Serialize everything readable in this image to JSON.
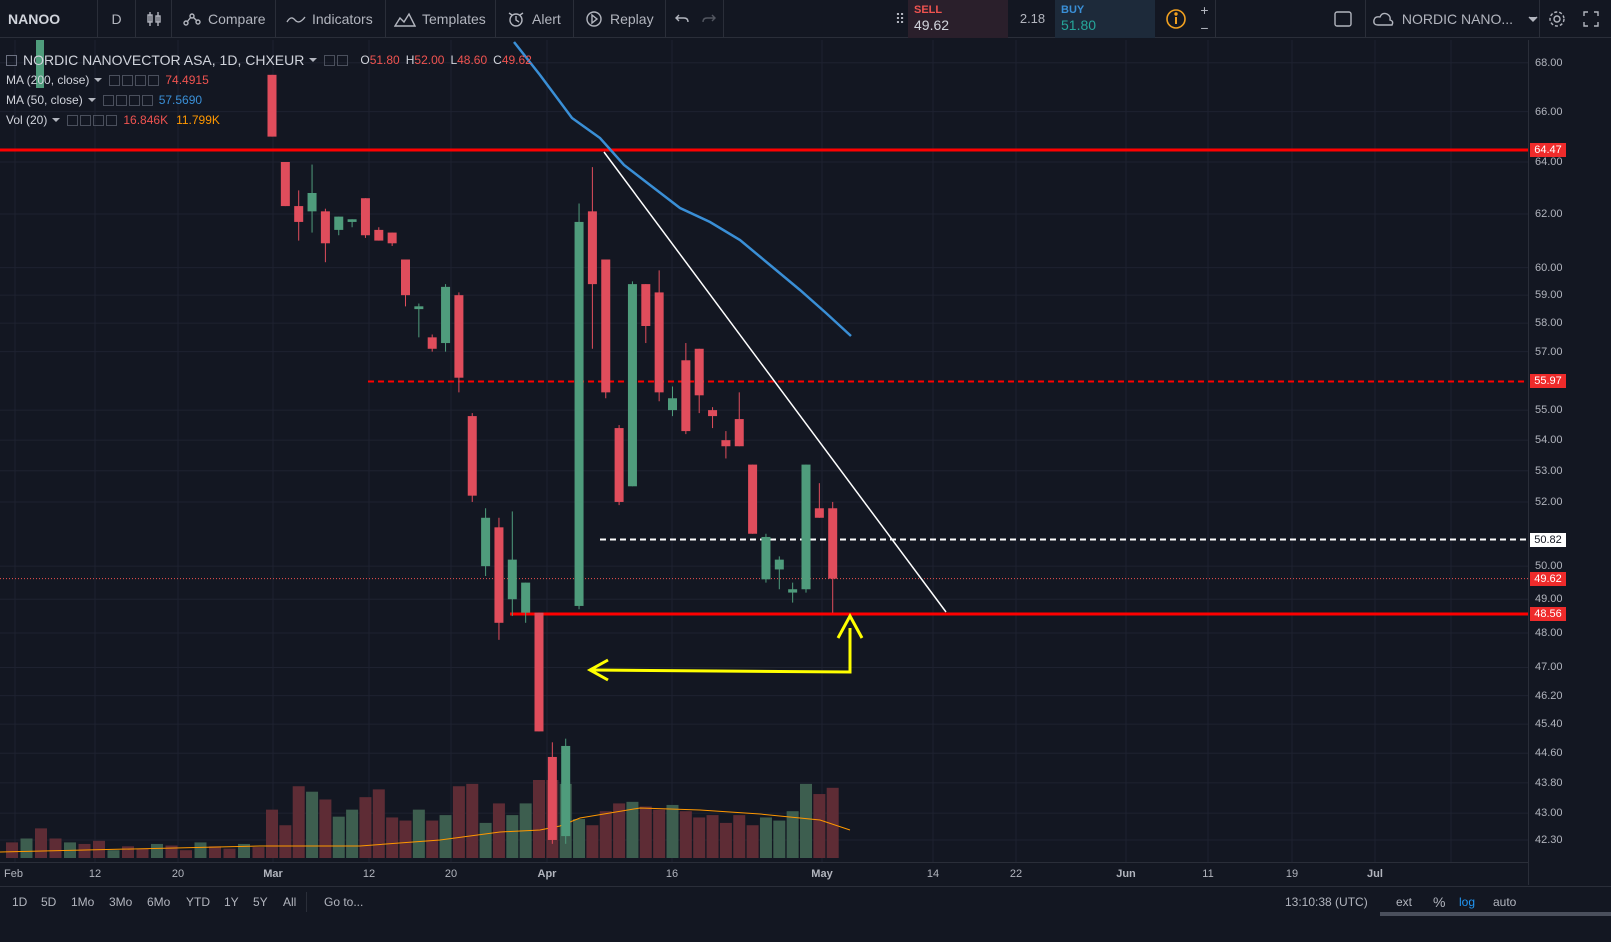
{
  "toolbar": {
    "symbol": "NANOO",
    "interval": "D",
    "compare": "Compare",
    "indicators": "Indicators",
    "templates": "Templates",
    "alert": "Alert",
    "replay": "Replay",
    "sell_label": "SELL",
    "sell_price": "49.62",
    "spread": "2.18",
    "buy_label": "BUY",
    "buy_price": "51.80",
    "plus": "+",
    "minus": "−",
    "watch_symbol": "NORDIC NANO..."
  },
  "legend": {
    "title": "NORDIC NANOVECTOR ASA, 1D, CHXEUR",
    "o_key": "O",
    "o_val": "51.80",
    "h_key": "H",
    "h_val": "52.00",
    "l_key": "L",
    "l_val": "48.60",
    "c_key": "C",
    "c_val": "49.62",
    "ma200_label": "MA (200, close)",
    "ma200_val": "74.4915",
    "ma50_label": "MA (50, close)",
    "ma50_val": "57.5690",
    "vol_label": "Vol (20)",
    "vol_val": "16.846K",
    "vol_ma_val": "11.799K"
  },
  "colors": {
    "up": "#4f9c7c",
    "down": "#e04d5c",
    "ma50": "#3a8fd6",
    "vol_ma": "#ff9800",
    "hline": "#ff0000",
    "annotation": "#ffff00",
    "trendline": "#ffffff"
  },
  "price_ticks": [
    "68.00",
    "66.00",
    "64.00",
    "62.00",
    "60.00",
    "59.00",
    "58.00",
    "57.00",
    "55.00",
    "54.00",
    "53.00",
    "52.00",
    "50.00",
    "49.00",
    "48.00",
    "47.00",
    "46.20",
    "45.40",
    "44.60",
    "43.80",
    "43.00",
    "42.30"
  ],
  "price_labels": [
    {
      "value": "64.47",
      "style": "red"
    },
    {
      "value": "55.97",
      "style": "red"
    },
    {
      "value": "50.82",
      "style": "white"
    },
    {
      "value": "49.62",
      "style": "red"
    },
    {
      "value": "48.56",
      "style": "red"
    }
  ],
  "time_ticks": [
    "Feb",
    "12",
    "20",
    "Mar",
    "12",
    "20",
    "Apr",
    "16",
    "May",
    "14",
    "22",
    "Jun",
    "11",
    "19",
    "Jul"
  ],
  "bottombar": {
    "ranges": [
      "1D",
      "5D",
      "1Mo",
      "3Mo",
      "6Mo",
      "YTD",
      "1Y",
      "5Y",
      "All"
    ],
    "goto": "Go to...",
    "clock": "13:10:38 (UTC)",
    "ext": "ext",
    "percent": "%",
    "log": "log",
    "auto": "auto"
  },
  "chart_data": {
    "type": "candlestick",
    "candles": [
      {
        "o": 67.5,
        "h": 67.5,
        "l": 65.0,
        "c": 65.0
      },
      {
        "o": 64.0,
        "h": 64.0,
        "l": 62.3,
        "c": 62.3
      },
      {
        "o": 62.3,
        "h": 62.9,
        "l": 61.0,
        "c": 61.7
      },
      {
        "o": 62.1,
        "h": 63.9,
        "l": 61.3,
        "c": 62.8
      },
      {
        "o": 62.1,
        "h": 62.2,
        "l": 60.2,
        "c": 60.9
      },
      {
        "o": 61.4,
        "h": 61.9,
        "l": 61.2,
        "c": 61.9
      },
      {
        "o": 61.7,
        "h": 61.8,
        "l": 61.5,
        "c": 61.8
      },
      {
        "o": 62.6,
        "h": 62.6,
        "l": 61.1,
        "c": 61.2
      },
      {
        "o": 61.4,
        "h": 61.5,
        "l": 61.0,
        "c": 61.0
      },
      {
        "o": 61.3,
        "h": 61.3,
        "l": 60.8,
        "c": 60.9
      },
      {
        "o": 60.3,
        "h": 60.3,
        "l": 58.6,
        "c": 59.0
      },
      {
        "o": 58.5,
        "h": 58.7,
        "l": 57.5,
        "c": 58.6
      },
      {
        "o": 57.5,
        "h": 57.6,
        "l": 57.0,
        "c": 57.1
      },
      {
        "o": 57.3,
        "h": 59.4,
        "l": 57.0,
        "c": 59.3
      },
      {
        "o": 59.0,
        "h": 59.1,
        "l": 55.6,
        "c": 56.1
      },
      {
        "o": 54.8,
        "h": 54.9,
        "l": 52.0,
        "c": 52.2
      },
      {
        "o": 50.0,
        "h": 51.8,
        "l": 49.7,
        "c": 51.5
      },
      {
        "o": 51.2,
        "h": 51.5,
        "l": 47.8,
        "c": 48.3
      },
      {
        "o": 49.0,
        "h": 51.7,
        "l": 48.5,
        "c": 50.2
      },
      {
        "o": 48.6,
        "h": 49.5,
        "l": 48.3,
        "c": 49.5
      },
      {
        "o": 48.6,
        "h": 48.6,
        "l": 45.2,
        "c": 45.2
      },
      {
        "o": 44.5,
        "h": 44.9,
        "l": 42.2,
        "c": 42.3
      },
      {
        "o": 42.4,
        "h": 45.0,
        "l": 42.2,
        "c": 44.8
      },
      {
        "o": 48.8,
        "h": 62.4,
        "l": 48.7,
        "c": 61.7
      },
      {
        "o": 62.1,
        "h": 63.8,
        "l": 57.1,
        "c": 59.4
      },
      {
        "o": 60.3,
        "h": 60.3,
        "l": 55.4,
        "c": 55.6
      },
      {
        "o": 54.4,
        "h": 54.5,
        "l": 51.9,
        "c": 52.0
      },
      {
        "o": 52.5,
        "h": 59.5,
        "l": 52.5,
        "c": 59.4
      },
      {
        "o": 59.4,
        "h": 59.4,
        "l": 57.3,
        "c": 57.9
      },
      {
        "o": 59.1,
        "h": 59.9,
        "l": 55.3,
        "c": 55.6
      },
      {
        "o": 55.0,
        "h": 55.8,
        "l": 54.8,
        "c": 55.4
      },
      {
        "o": 56.7,
        "h": 57.3,
        "l": 54.2,
        "c": 54.3
      },
      {
        "o": 57.1,
        "h": 57.1,
        "l": 54.9,
        "c": 55.5
      },
      {
        "o": 55.0,
        "h": 55.1,
        "l": 54.4,
        "c": 54.8
      },
      {
        "o": 54.0,
        "h": 54.3,
        "l": 53.4,
        "c": 53.8
      },
      {
        "o": 54.7,
        "h": 55.6,
        "l": 53.8,
        "c": 53.8
      },
      {
        "o": 53.2,
        "h": 53.2,
        "l": 51.0,
        "c": 51.0
      },
      {
        "o": 49.6,
        "h": 51.0,
        "l": 49.5,
        "c": 50.9
      },
      {
        "o": 49.9,
        "h": 50.3,
        "l": 49.3,
        "c": 50.2
      },
      {
        "o": 49.2,
        "h": 49.5,
        "l": 48.9,
        "c": 49.3
      },
      {
        "o": 49.3,
        "h": 53.2,
        "l": 49.2,
        "c": 53.2
      },
      {
        "o": 51.8,
        "h": 52.6,
        "l": 51.5,
        "c": 51.5
      },
      {
        "o": 51.8,
        "h": 52.0,
        "l": 48.6,
        "c": 49.62
      }
    ],
    "volume_relative": [
      0.62,
      0.42,
      0.92,
      0.85,
      0.75,
      0.53,
      0.62,
      0.78,
      0.88,
      0.52,
      0.48,
      0.62,
      0.48,
      0.55,
      0.92,
      0.95,
      0.45,
      0.7,
      0.55,
      0.7,
      1.0,
      1.0,
      0.95,
      0.5,
      0.42,
      0.6,
      0.7,
      0.72,
      0.66,
      0.62,
      0.68,
      0.6,
      0.52,
      0.55,
      0.45,
      0.55,
      0.42,
      0.52,
      0.48,
      0.6,
      0.95,
      0.82,
      0.9
    ],
    "ma50": [
      [
        64.3,
        64.0
      ],
      [
        62.5,
        61.9
      ],
      [
        61.0,
        60.9
      ],
      [
        59.5,
        58.6
      ],
      [
        57.6,
        57.6
      ]
    ],
    "horizontal_lines": [
      64.47,
      55.97,
      50.82,
      48.56
    ],
    "axis_scale": "log",
    "ylim": [
      42.3,
      68.0
    ]
  }
}
